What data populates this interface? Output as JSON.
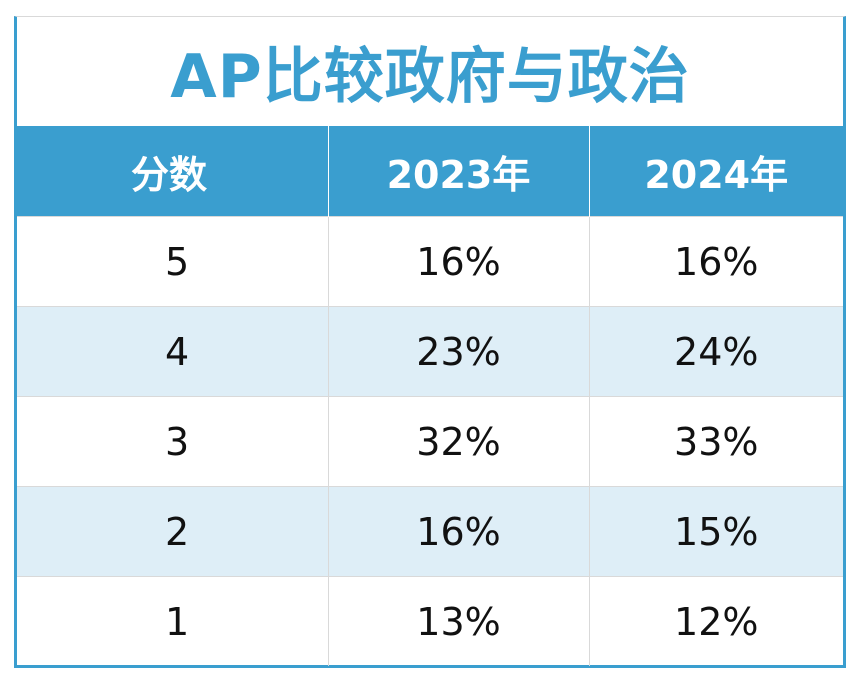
{
  "title": "AP比较政府与政治",
  "headers": [
    "分数",
    "2023年",
    "2024年"
  ],
  "rows": [
    [
      "5",
      "16%",
      "16%"
    ],
    [
      "4",
      "23%",
      "24%"
    ],
    [
      "3",
      "32%",
      "33%"
    ],
    [
      "2",
      "16%",
      "15%"
    ],
    [
      "1",
      "13%",
      "12%"
    ]
  ],
  "colors": {
    "accent": "#3a9ecf",
    "row_alt": "#deeef7",
    "header_text": "#ffffff"
  }
}
